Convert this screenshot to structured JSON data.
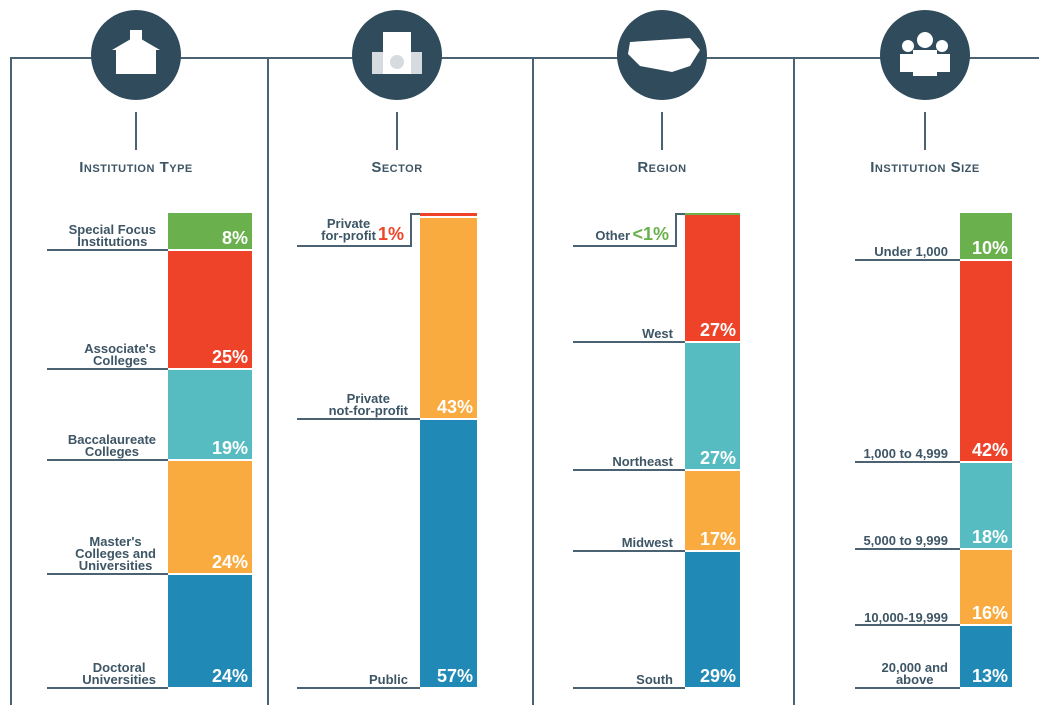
{
  "chart_data": [
    {
      "type": "stacked-bar",
      "title": "Institution Type",
      "categories": [
        "Special Focus\nInstitutions",
        "Associate's\nColleges",
        "Baccalaureate\nColleges",
        "Master's\nColleges and\nUniversities",
        "Doctoral\nUniversities"
      ],
      "values": [
        8,
        25,
        19,
        24,
        24
      ],
      "value_labels": [
        "8%",
        "25%",
        "19%",
        "24%",
        "24%"
      ],
      "colors": [
        "#6ab04c",
        "#ee4328",
        "#56bcc1",
        "#f9ab3f",
        "#2189b6"
      ]
    },
    {
      "type": "stacked-bar",
      "title": "Sector",
      "categories": [
        "Private\nfor-profit",
        "Private\nnot-for-profit",
        "Public"
      ],
      "values": [
        1,
        43,
        57
      ],
      "value_labels": [
        "1%",
        "43%",
        "57%"
      ],
      "colors": [
        "#ee4328",
        "#f9ab3f",
        "#2189b6"
      ]
    },
    {
      "type": "stacked-bar",
      "title": "Region",
      "categories": [
        "Other",
        "West",
        "Northeast",
        "Midwest",
        "South"
      ],
      "values": [
        0.5,
        27,
        27,
        17,
        29
      ],
      "value_labels": [
        "<1%",
        "27%",
        "27%",
        "17%",
        "29%"
      ],
      "colors": [
        "#6ab04c",
        "#ee4328",
        "#56bcc1",
        "#f9ab3f",
        "#2189b6"
      ]
    },
    {
      "type": "stacked-bar",
      "title": "Institution Size",
      "categories": [
        "Under 1,000",
        "1,000 to 4,999",
        "5,000 to 9,999",
        "10,000-19,999",
        "20,000 and\nabove"
      ],
      "values": [
        10,
        42,
        18,
        16,
        13
      ],
      "value_labels": [
        "10%",
        "42%",
        "18%",
        "16%",
        "13%"
      ],
      "colors": [
        "#6ab04c",
        "#ee4328",
        "#56bcc1",
        "#f9ab3f",
        "#2189b6"
      ]
    }
  ]
}
